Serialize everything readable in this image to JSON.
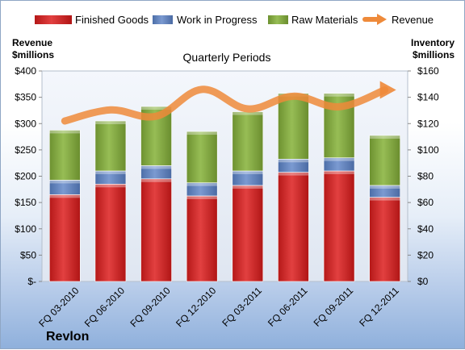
{
  "chart_data": {
    "type": "bar",
    "stacked": true,
    "subtitle": "Quarterly Periods",
    "company": "Revlon",
    "left_axis_title": [
      "Revenue",
      "$millions"
    ],
    "right_axis_title": [
      "Inventory",
      "$millions"
    ],
    "categories": [
      "FQ 03-2010",
      "FQ 06-2010",
      "FQ 09-2010",
      "FQ 12-2010",
      "FQ 03-2011",
      "FQ 06-2011",
      "FQ 09-2011",
      "FQ 12-2011"
    ],
    "series": [
      {
        "name": "Finished Goods",
        "axis": "right",
        "color": "#cc2222",
        "values": [
          66,
          74,
          78,
          65,
          73,
          83,
          84,
          64
        ]
      },
      {
        "name": "Work in Progress",
        "axis": "right",
        "color": "#5b7fc0",
        "values": [
          11,
          10,
          10,
          10,
          11,
          10,
          10,
          9
        ]
      },
      {
        "name": "Raw Materials",
        "axis": "right",
        "color": "#7ea33a",
        "values": [
          38,
          38,
          45,
          39,
          45,
          50,
          49,
          38
        ]
      },
      {
        "name": "Revenue",
        "axis": "left",
        "type": "line",
        "color": "#ee8a3a",
        "values": [
          305,
          326,
          314,
          365,
          328,
          352,
          332,
          364
        ]
      }
    ],
    "left_axis": {
      "min": 0,
      "max": 400,
      "step": 50,
      "ticks": [
        "$-",
        "$50",
        "$100",
        "$150",
        "$200",
        "$250",
        "$300",
        "$350",
        "$400"
      ]
    },
    "right_axis": {
      "min": 0,
      "max": 160,
      "step": 20,
      "ticks": [
        "$0",
        "$20",
        "$40",
        "$60",
        "$80",
        "$100",
        "$120",
        "$140",
        "$160"
      ]
    },
    "legend_position": "top",
    "grid": false
  }
}
